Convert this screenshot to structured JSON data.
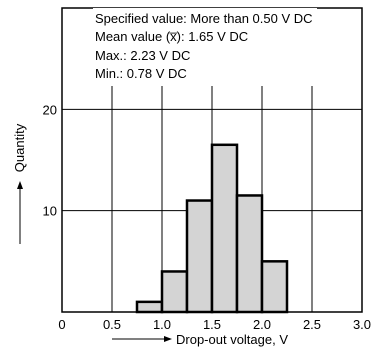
{
  "chart_data": {
    "type": "bar",
    "title": "",
    "xlabel": "Drop-out voltage, V",
    "ylabel": "Quantity",
    "xlim": [
      0,
      3.0
    ],
    "ylim": [
      0,
      30
    ],
    "grid": true,
    "x_ticks": [
      "0",
      "0.5",
      "1.0",
      "1.5",
      "2.0",
      "2.5",
      "3.0"
    ],
    "y_ticks": [
      "10",
      "20"
    ],
    "bins": [
      {
        "x0": 0.75,
        "x1": 1.0,
        "value": 1
      },
      {
        "x0": 1.0,
        "x1": 1.25,
        "value": 4
      },
      {
        "x0": 1.25,
        "x1": 1.5,
        "value": 11
      },
      {
        "x0": 1.5,
        "x1": 1.75,
        "value": 16.5
      },
      {
        "x0": 1.75,
        "x1": 2.0,
        "value": 11.5
      },
      {
        "x0": 2.0,
        "x1": 2.25,
        "value": 5
      }
    ],
    "bar_fill": "#d4d4d4",
    "annotations": [
      "Specified value: More than 0.50 V DC",
      "Mean value (x̅): 1.65 V DC",
      "Max.: 2.23 V DC",
      "Min.: 0.78 V DC"
    ]
  }
}
